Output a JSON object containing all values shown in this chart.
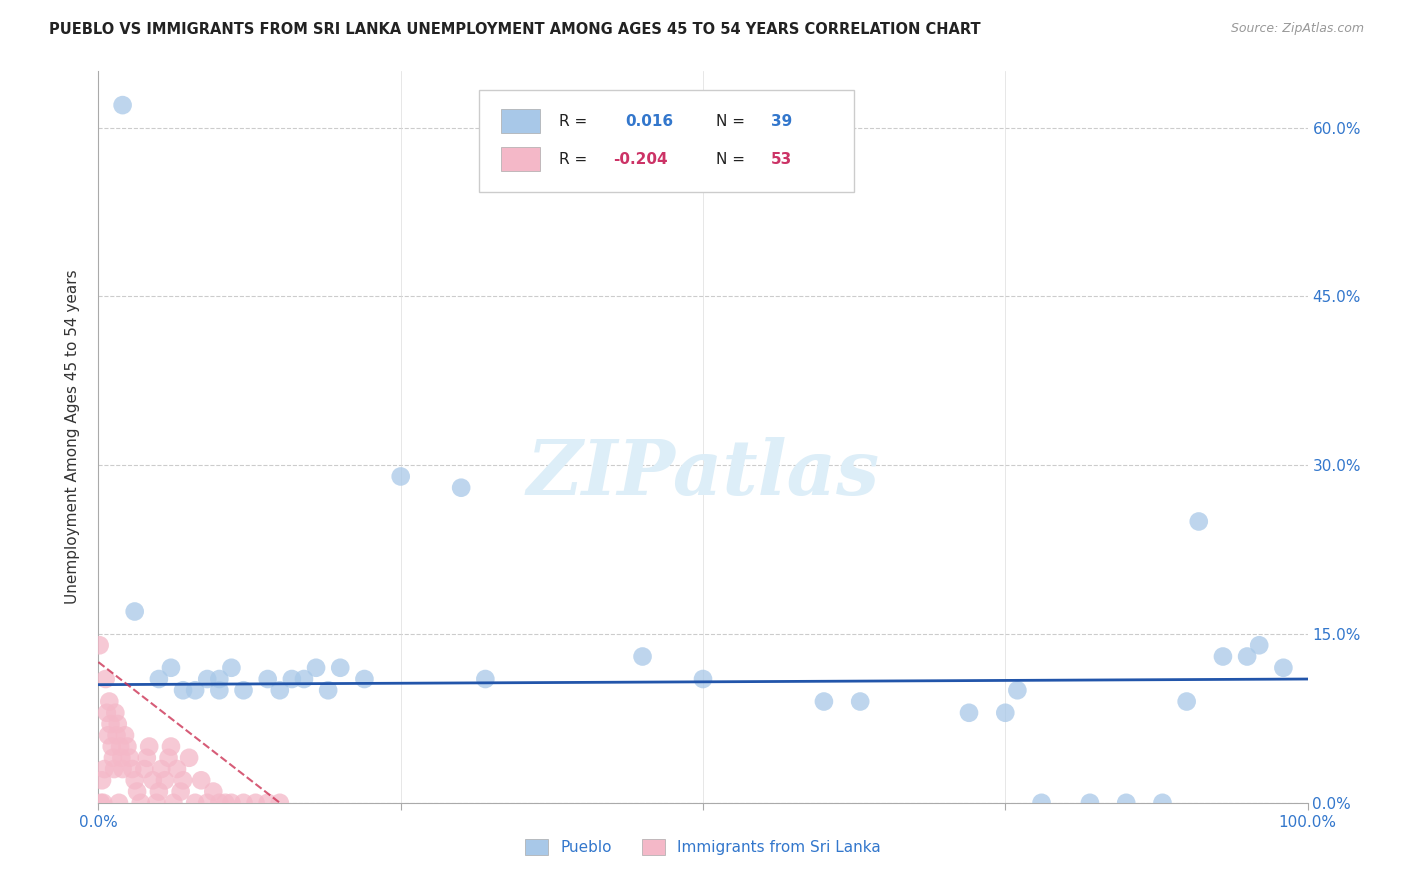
{
  "title": "PUEBLO VS IMMIGRANTS FROM SRI LANKA UNEMPLOYMENT AMONG AGES 45 TO 54 YEARS CORRELATION CHART",
  "source": "Source: ZipAtlas.com",
  "ylabel": "Unemployment Among Ages 45 to 54 years",
  "xlim": [
    0,
    100
  ],
  "ylim": [
    0,
    65
  ],
  "xticks": [
    0,
    25,
    50,
    75,
    100
  ],
  "xticklabels": [
    "0.0%",
    "",
    "",
    "",
    "100.0%"
  ],
  "yticks": [
    0,
    15,
    30,
    45,
    60
  ],
  "yticklabels_right": [
    "0.0%",
    "15.0%",
    "30.0%",
    "45.0%",
    "60.0%"
  ],
  "pueblo_R": "0.016",
  "pueblo_N": "39",
  "srilanka_R": "-0.204",
  "srilanka_N": "53",
  "pueblo_color": "#a8c8e8",
  "srilanka_color": "#f4b8c8",
  "pueblo_trend_color": "#2255aa",
  "srilanka_trend_color": "#cc3355",
  "watermark_color": "#ddeef8",
  "pueblo_x": [
    2,
    3,
    5,
    6,
    7,
    8,
    9,
    10,
    10,
    11,
    12,
    14,
    15,
    16,
    17,
    18,
    19,
    20,
    22,
    25,
    30,
    32,
    45,
    50,
    60,
    63,
    72,
    75,
    76,
    78,
    82,
    85,
    88,
    90,
    91,
    93,
    95,
    96,
    98
  ],
  "pueblo_y": [
    62,
    17,
    11,
    12,
    10,
    10,
    11,
    11,
    10,
    12,
    10,
    11,
    10,
    11,
    11,
    12,
    10,
    12,
    11,
    29,
    28,
    11,
    13,
    11,
    9,
    9,
    8,
    8,
    10,
    0,
    0,
    0,
    0,
    9,
    25,
    13,
    13,
    14,
    12
  ],
  "srilanka_x": [
    0.1,
    0.2,
    0.3,
    0.4,
    0.5,
    0.6,
    0.7,
    0.8,
    0.9,
    1.0,
    1.1,
    1.2,
    1.3,
    1.4,
    1.5,
    1.6,
    1.7,
    1.8,
    1.9,
    2.0,
    2.2,
    2.4,
    2.6,
    2.8,
    3.0,
    3.2,
    3.5,
    3.8,
    4.0,
    4.2,
    4.5,
    4.8,
    5.0,
    5.2,
    5.5,
    5.8,
    6.0,
    6.2,
    6.5,
    6.8,
    7.0,
    7.5,
    8.0,
    8.5,
    9.0,
    9.5,
    10.0,
    10.5,
    11.0,
    12.0,
    13.0,
    14.0,
    15.0
  ],
  "srilanka_y": [
    14,
    0,
    2,
    0,
    3,
    11,
    8,
    6,
    9,
    7,
    5,
    4,
    3,
    8,
    6,
    7,
    0,
    5,
    4,
    3,
    6,
    5,
    4,
    3,
    2,
    1,
    0,
    3,
    4,
    5,
    2,
    0,
    1,
    3,
    2,
    4,
    5,
    0,
    3,
    1,
    2,
    4,
    0,
    2,
    0,
    1,
    0,
    0,
    0,
    0,
    0,
    0,
    0
  ],
  "pueblo_trend_x": [
    0,
    100
  ],
  "pueblo_trend_y": [
    10.5,
    11.0
  ],
  "srilanka_trend_x": [
    0,
    15
  ],
  "srilanka_trend_y": [
    12.5,
    0
  ]
}
